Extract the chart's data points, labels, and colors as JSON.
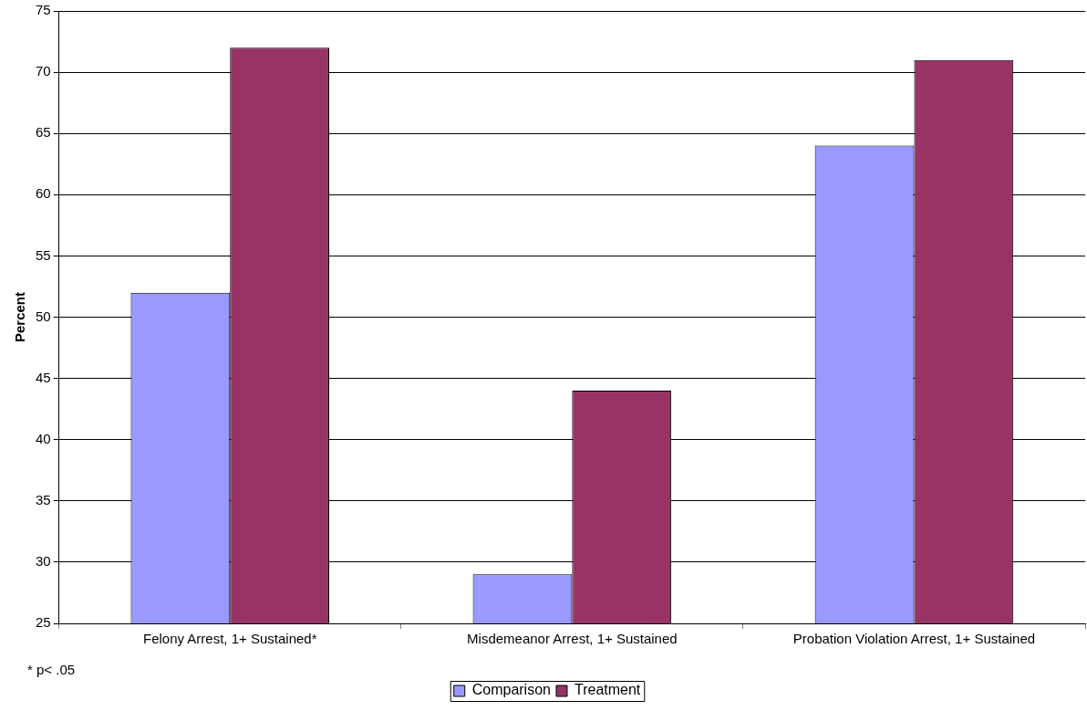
{
  "chart_data": {
    "type": "bar",
    "ylabel": "Percent",
    "categories": [
      "Felony Arrest, 1+ Sustained*",
      "Misdemeanor Arrest, 1+ Sustained",
      "Probation Violation Arrest, 1+ Sustained"
    ],
    "series": [
      {
        "name": "Comparison",
        "color": "#9999ff",
        "values": [
          52,
          29,
          64
        ]
      },
      {
        "name": "Treatment",
        "color": "#993366",
        "values": [
          72,
          44,
          71
        ]
      }
    ],
    "ylim": [
      25,
      75
    ],
    "yticks": [
      25,
      30,
      35,
      40,
      45,
      50,
      55,
      60,
      65,
      70,
      75
    ],
    "grid": "y",
    "legend": "bottom",
    "annotations": [
      "* p< .05"
    ]
  }
}
